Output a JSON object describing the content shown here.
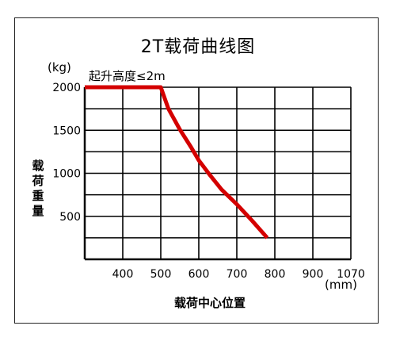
{
  "chart_data": {
    "type": "line",
    "title": "2T载荷曲线图",
    "xlabel": "载荷中心位置",
    "xunit": "(mm)",
    "ylabel": "载荷重量",
    "yunit": "(kg)",
    "annotation": "起升高度≤2m",
    "x_ticks": [
      "400",
      "500",
      "600",
      "700",
      "800",
      "900",
      "1070"
    ],
    "y_ticks": [
      "2000",
      "1500",
      "1000",
      "500"
    ],
    "grid": true,
    "series_color": "#d40000",
    "series": [
      {
        "x": [
          300,
          500,
          520,
          550,
          580,
          600,
          630,
          660,
          700,
          740,
          780
        ],
        "y": [
          2000,
          2000,
          1750,
          1510,
          1300,
          1150,
          975,
          810,
          640,
          450,
          250
        ]
      }
    ]
  }
}
